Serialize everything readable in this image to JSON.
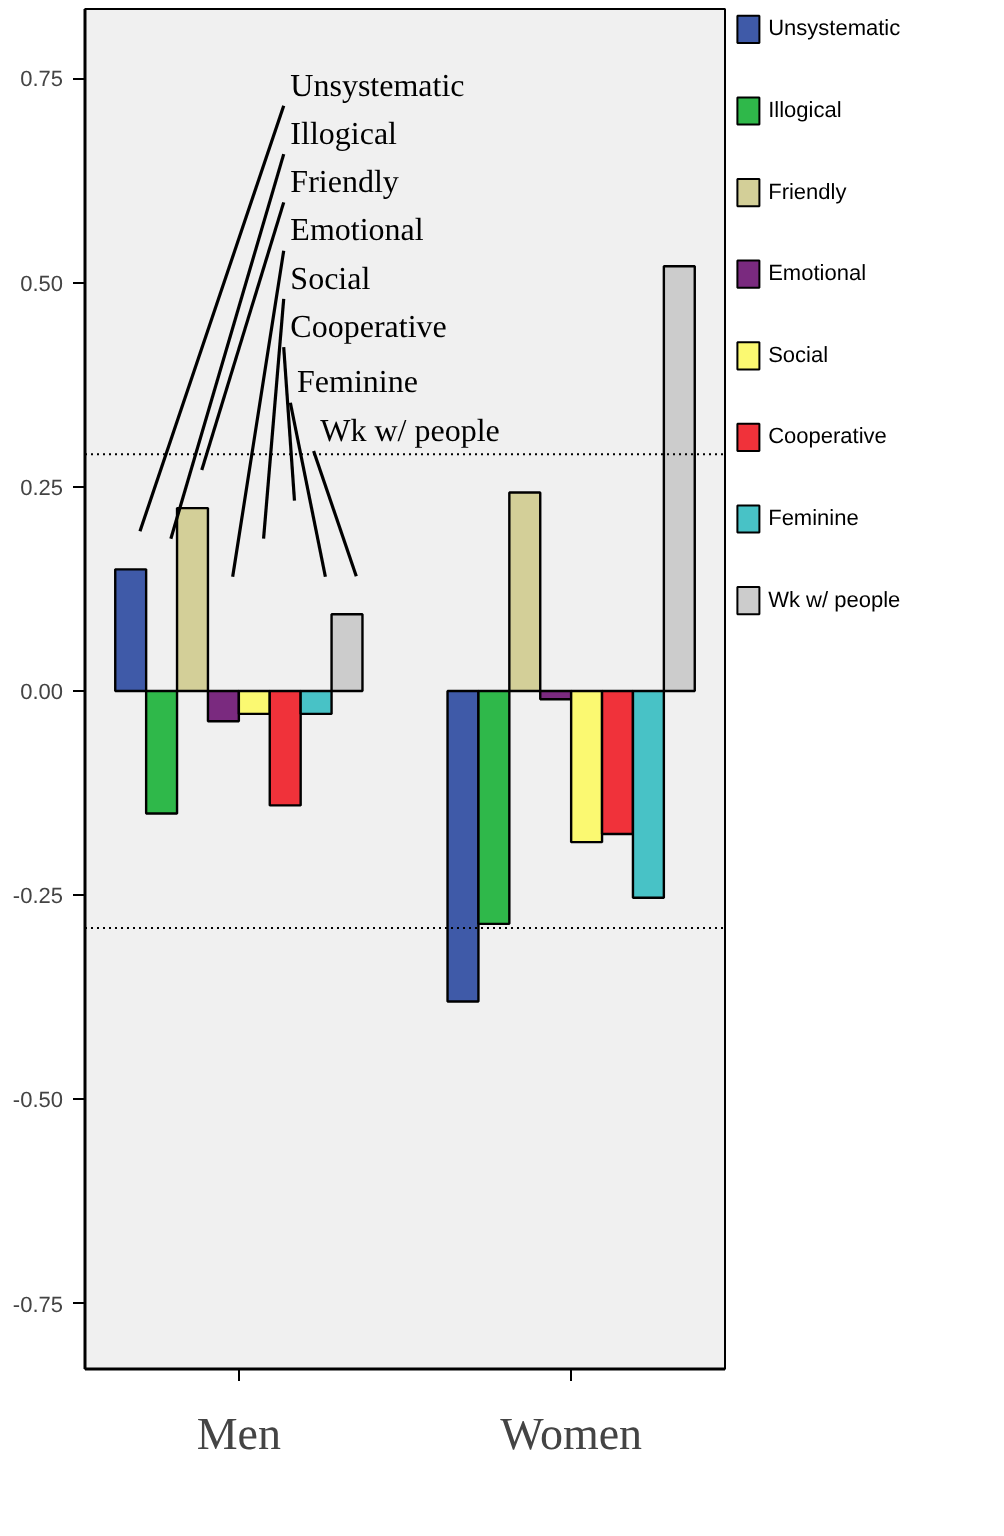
{
  "chart_data": {
    "type": "bar",
    "categories": [
      "Men",
      "Women"
    ],
    "series": [
      {
        "name": "Unsystematic",
        "color": "#3f5aa8",
        "values": [
          0.149,
          -0.38
        ]
      },
      {
        "name": "Illogical",
        "color": "#2fb84a",
        "values": [
          -0.15,
          -0.285
        ]
      },
      {
        "name": "Friendly",
        "color": "#d3cf98",
        "values": [
          0.224,
          0.243
        ]
      },
      {
        "name": "Emotional",
        "color": "#7a2a7f",
        "values": [
          -0.037,
          -0.01
        ]
      },
      {
        "name": "Social",
        "color": "#fbf971",
        "values": [
          -0.028,
          -0.185
        ]
      },
      {
        "name": "Cooperative",
        "color": "#f0323a",
        "values": [
          -0.14,
          -0.175
        ]
      },
      {
        "name": "Feminine",
        "color": "#48c2c6",
        "values": [
          -0.028,
          -0.253
        ]
      },
      {
        "name": "Wk w/ people",
        "color": "#cccccc",
        "values": [
          0.094,
          0.52
        ]
      }
    ],
    "ylim": [
      -0.83,
      0.835
    ],
    "yticks": [
      {
        "value": -0.75,
        "label": "-0.75"
      },
      {
        "value": -0.5,
        "label": "-0.50"
      },
      {
        "value": -0.25,
        "label": "-0.25"
      },
      {
        "value": 0,
        "label": "0.00"
      },
      {
        "value": 0.25,
        "label": "0.25"
      },
      {
        "value": 0.5,
        "label": "0.50"
      },
      {
        "value": 0.75,
        "label": "0.75"
      }
    ],
    "ref_lines": [
      {
        "axis": "y",
        "value": 0.29,
        "line_style": "dotted"
      },
      {
        "axis": "y",
        "value": -0.29,
        "line_style": "dotted"
      }
    ],
    "grid": false,
    "legend": "right"
  }
}
